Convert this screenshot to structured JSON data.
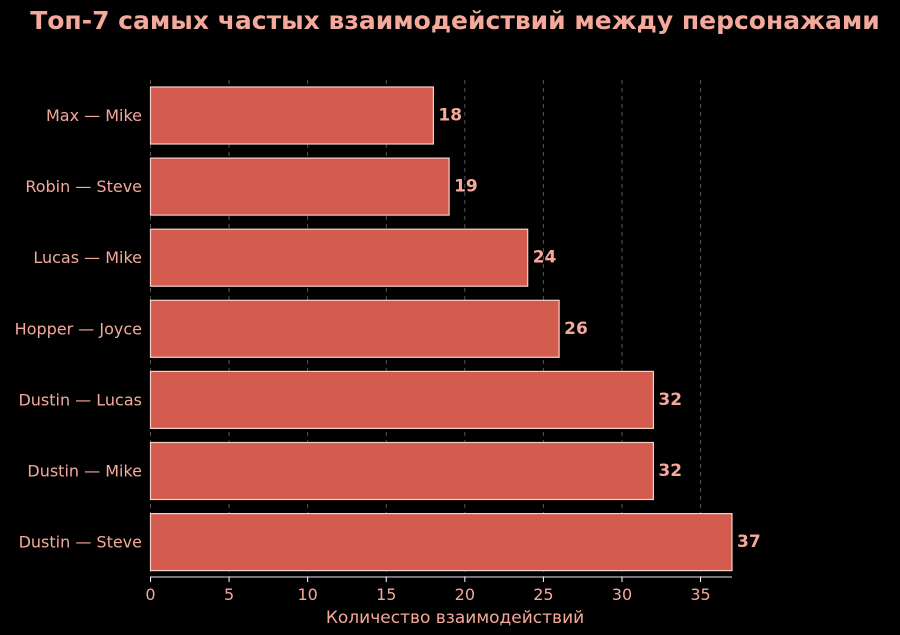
{
  "chart_data": {
    "type": "bar",
    "orientation": "horizontal",
    "title": "Топ-7 самых частых взаимодействий между персонажами",
    "xlabel": "Количество взаимодействий",
    "ylabel": "",
    "categories": [
      "Max — Mike",
      "Robin — Steve",
      "Lucas — Mike",
      "Hopper — Joyce",
      "Dustin — Lucas",
      "Dustin — Mike",
      "Dustin — Steve"
    ],
    "values": [
      18,
      19,
      24,
      26,
      32,
      32,
      37
    ],
    "value_labels": [
      "18",
      "19",
      "24",
      "26",
      "32",
      "32",
      "37"
    ],
    "xlim": [
      0,
      37
    ],
    "xticks": [
      0,
      5,
      10,
      15,
      20,
      25,
      30,
      35
    ],
    "xtick_labels": [
      "0",
      "5",
      "10",
      "15",
      "20",
      "25",
      "30",
      "35"
    ],
    "grid": "vertical dashed",
    "legend": "none",
    "colors": {
      "background": "#000000",
      "bar": "#d35c4e",
      "bar_edge": "#f5d0c8",
      "text": "#f4a99b",
      "grid": "#555555",
      "axis": "#ffffff"
    }
  }
}
